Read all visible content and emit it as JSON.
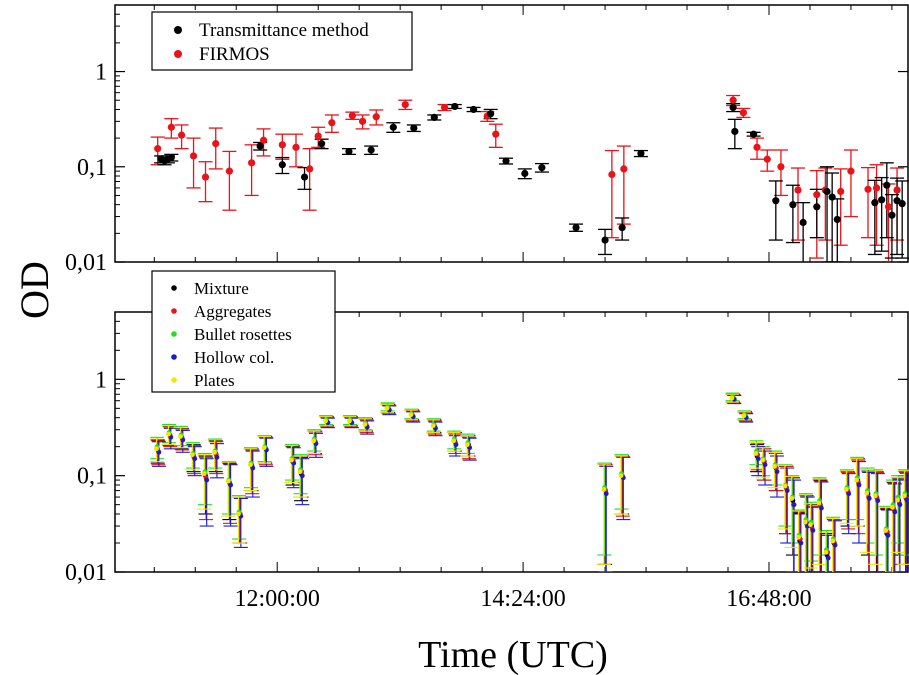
{
  "chart_data": [
    {
      "type": "scatter",
      "panel": "top",
      "yscale": "log",
      "ylim": [
        0.01,
        5
      ],
      "y_ticks": [
        "0,01",
        "0,1",
        "1"
      ],
      "x_ticks": [
        "12:00:00",
        "14:24:00",
        "16:48:00"
      ],
      "legend_position": "top-left",
      "series": [
        {
          "name": "Transmittance method",
          "color": "#000000",
          "points": [
            {
              "x": "10:52",
              "y": 0.12,
              "err": 0.01
            },
            {
              "x": "10:54",
              "y": 0.115,
              "err": 0.01
            },
            {
              "x": "10:56",
              "y": 0.12,
              "err": 0.01
            },
            {
              "x": "10:58",
              "y": 0.125,
              "err": 0.01
            },
            {
              "x": "11:50",
              "y": 0.165,
              "err": 0.015
            },
            {
              "x": "12:03",
              "y": 0.105,
              "err": 0.02
            },
            {
              "x": "12:16",
              "y": 0.078,
              "err": 0.02
            },
            {
              "x": "12:26",
              "y": 0.175,
              "err": 0.02
            },
            {
              "x": "12:42",
              "y": 0.145,
              "err": 0.01
            },
            {
              "x": "12:55",
              "y": 0.15,
              "err": 0.015
            },
            {
              "x": "13:08",
              "y": 0.26,
              "err": 0.03
            },
            {
              "x": "13:20",
              "y": 0.255,
              "err": 0.02
            },
            {
              "x": "13:32",
              "y": 0.33,
              "err": 0.02
            },
            {
              "x": "13:44",
              "y": 0.43,
              "err": 0.02
            },
            {
              "x": "13:55",
              "y": 0.4,
              "err": 0.02
            },
            {
              "x": "14:05",
              "y": 0.36,
              "err": 0.04
            },
            {
              "x": "14:14",
              "y": 0.115,
              "err": 0.008
            },
            {
              "x": "14:25",
              "y": 0.085,
              "err": 0.01
            },
            {
              "x": "14:35",
              "y": 0.098,
              "err": 0.01
            },
            {
              "x": "14:55",
              "y": 0.023,
              "err": 0.002
            },
            {
              "x": "15:12",
              "y": 0.017,
              "err": 0.005
            },
            {
              "x": "15:22",
              "y": 0.023,
              "err": 0.006
            },
            {
              "x": "15:33",
              "y": 0.138,
              "err": 0.01
            },
            {
              "x": "16:27",
              "y": 0.42,
              "err": 0.04
            },
            {
              "x": "16:28",
              "y": 0.235,
              "err": 0.08
            },
            {
              "x": "16:39",
              "y": 0.22,
              "err": 0.01
            },
            {
              "x": "16:52",
              "y": 0.044,
              "err": 0.027
            },
            {
              "x": "17:02",
              "y": 0.04,
              "err": 0.024
            },
            {
              "x": "17:08",
              "y": 0.026,
              "err": 0.016
            },
            {
              "x": "17:16",
              "y": 0.038,
              "err": 0.02
            },
            {
              "x": "17:22",
              "y": 0.055,
              "err": 0.045
            },
            {
              "x": "17:25",
              "y": 0.048,
              "err": 0.038
            },
            {
              "x": "17:28",
              "y": 0.028,
              "err": 0.018
            },
            {
              "x": "17:50",
              "y": 0.042,
              "err": 0.03
            },
            {
              "x": "17:54",
              "y": 0.045,
              "err": 0.032
            },
            {
              "x": "17:57",
              "y": 0.064,
              "err": 0.046
            },
            {
              "x": "18:00",
              "y": 0.031,
              "err": 0.02
            },
            {
              "x": "18:03",
              "y": 0.044,
              "err": 0.032
            },
            {
              "x": "18:06",
              "y": 0.041,
              "err": 0.03
            }
          ]
        },
        {
          "name": "FIRMOS",
          "color": "#e8141a",
          "points": [
            {
              "x": "10:50",
              "y": 0.155,
              "err": 0.05
            },
            {
              "x": "10:58",
              "y": 0.26,
              "err": 0.06
            },
            {
              "x": "11:04",
              "y": 0.215,
              "err": 0.06
            },
            {
              "x": "11:11",
              "y": 0.13,
              "err": 0.07
            },
            {
              "x": "11:18",
              "y": 0.078,
              "err": 0.035
            },
            {
              "x": "11:24",
              "y": 0.175,
              "err": 0.08
            },
            {
              "x": "11:32",
              "y": 0.09,
              "err": 0.055
            },
            {
              "x": "11:45",
              "y": 0.11,
              "err": 0.06
            },
            {
              "x": "11:52",
              "y": 0.19,
              "err": 0.06
            },
            {
              "x": "12:03",
              "y": 0.17,
              "err": 0.05
            },
            {
              "x": "12:11",
              "y": 0.16,
              "err": 0.06
            },
            {
              "x": "12:19",
              "y": 0.095,
              "err": 0.06
            },
            {
              "x": "12:24",
              "y": 0.21,
              "err": 0.05
            },
            {
              "x": "12:32",
              "y": 0.29,
              "err": 0.06
            },
            {
              "x": "12:44",
              "y": 0.345,
              "err": 0.03
            },
            {
              "x": "12:50",
              "y": 0.3,
              "err": 0.05
            },
            {
              "x": "12:58",
              "y": 0.335,
              "err": 0.06
            },
            {
              "x": "13:15",
              "y": 0.45,
              "err": 0.05
            },
            {
              "x": "13:38",
              "y": 0.42,
              "err": 0.03
            },
            {
              "x": "14:03",
              "y": 0.34,
              "err": 0.04
            },
            {
              "x": "14:08",
              "y": 0.22,
              "err": 0.06
            },
            {
              "x": "15:16",
              "y": 0.083,
              "err": 0.065
            },
            {
              "x": "15:23",
              "y": 0.095,
              "err": 0.07
            },
            {
              "x": "16:27",
              "y": 0.5,
              "err": 0.06
            },
            {
              "x": "16:33",
              "y": 0.37,
              "err": 0.04
            },
            {
              "x": "16:41",
              "y": 0.16,
              "err": 0.04
            },
            {
              "x": "16:47",
              "y": 0.12,
              "err": 0.03
            },
            {
              "x": "16:55",
              "y": 0.1,
              "err": 0.05
            },
            {
              "x": "17:05",
              "y": 0.057,
              "err": 0.04
            },
            {
              "x": "17:16",
              "y": 0.051,
              "err": 0.04
            },
            {
              "x": "17:21",
              "y": 0.057,
              "err": 0.04
            },
            {
              "x": "17:30",
              "y": 0.055,
              "err": 0.04
            },
            {
              "x": "17:36",
              "y": 0.09,
              "err": 0.06
            },
            {
              "x": "17:46",
              "y": 0.058,
              "err": 0.04
            },
            {
              "x": "17:51",
              "y": 0.06,
              "err": 0.045
            },
            {
              "x": "17:58",
              "y": 0.038,
              "err": 0.028
            },
            {
              "x": "18:03",
              "y": 0.057,
              "err": 0.04
            }
          ]
        }
      ]
    },
    {
      "type": "scatter",
      "panel": "bottom",
      "yscale": "log",
      "ylim": [
        0.01,
        5
      ],
      "y_ticks": [
        "0,01",
        "0,1",
        "1"
      ],
      "x_ticks": [
        "12:00:00",
        "14:24:00",
        "16:48:00"
      ],
      "xlabel": "Time (UTC)",
      "ylabel": "OD",
      "legend_position": "top-left",
      "series_names": [
        "Mixture",
        "Aggregates",
        "Bullet rosettes",
        "Hollow col.",
        "Plates"
      ],
      "series_colors": [
        "#000000",
        "#e8141a",
        "#22dd22",
        "#1a1ad6",
        "#f2e600"
      ],
      "x": [
        "10:50",
        "10:57",
        "11:04",
        "11:11",
        "11:18",
        "11:24",
        "11:32",
        "11:38",
        "11:45",
        "11:53",
        "12:09",
        "12:14",
        "12:22",
        "12:29",
        "12:43",
        "12:52",
        "13:05",
        "13:19",
        "13:32",
        "13:44",
        "13:52",
        "15:12",
        "15:22",
        "16:27",
        "16:34",
        "16:41",
        "16:45",
        "16:52",
        "16:58",
        "17:02",
        "17:06",
        "17:10",
        "17:13",
        "17:18",
        "17:22",
        "17:26",
        "17:34",
        "17:40",
        "17:46",
        "17:51",
        "17:57",
        "18:01",
        "18:04",
        "18:08"
      ],
      "series": [
        {
          "name": "Mixture",
          "values": [
            0.185,
            0.265,
            0.25,
            0.16,
            0.1,
            0.17,
            0.085,
            0.04,
            0.13,
            0.195,
            0.14,
            0.105,
            0.23,
            0.37,
            0.37,
            0.34,
            0.5,
            0.43,
            0.33,
            0.23,
            0.21,
            0.072,
            0.1,
            0.64,
            0.42,
            0.16,
            0.14,
            0.12,
            0.075,
            0.055,
            0.021,
            0.032,
            0.03,
            0.05,
            0.015,
            0.02,
            0.07,
            0.09,
            0.065,
            0.06,
            0.025,
            0.045,
            0.055,
            0.06
          ],
          "err": [
            0.05,
            0.06,
            0.06,
            0.05,
            0.06,
            0.06,
            0.05,
            0.02,
            0.06,
            0.06,
            0.06,
            0.05,
            0.06,
            0.04,
            0.04,
            0.05,
            0.05,
            0.05,
            0.05,
            0.05,
            0.05,
            0.06,
            0.06,
            0.06,
            0.04,
            0.05,
            0.05,
            0.05,
            0.05,
            0.04,
            0.02,
            0.03,
            0.02,
            0.04,
            0.01,
            0.015,
            0.04,
            0.06,
            0.05,
            0.05,
            0.02,
            0.04,
            0.04,
            0.05
          ]
        },
        {
          "name": "Aggregates",
          "values": [
            0.18,
            0.26,
            0.245,
            0.155,
            0.095,
            0.165,
            0.082,
            0.04,
            0.125,
            0.19,
            0.145,
            0.11,
            0.225,
            0.36,
            0.36,
            0.33,
            0.49,
            0.42,
            0.32,
            0.22,
            0.2,
            0.07,
            0.098,
            0.63,
            0.41,
            0.165,
            0.14,
            0.12,
            0.075,
            0.05,
            0.022,
            0.03,
            0.028,
            0.048,
            0.016,
            0.02,
            0.068,
            0.085,
            0.06,
            0.058,
            0.026,
            0.044,
            0.052,
            0.058
          ],
          "err": [
            0.05,
            0.06,
            0.06,
            0.05,
            0.06,
            0.06,
            0.05,
            0.02,
            0.06,
            0.06,
            0.06,
            0.05,
            0.06,
            0.04,
            0.04,
            0.05,
            0.05,
            0.05,
            0.05,
            0.05,
            0.05,
            0.06,
            0.06,
            0.06,
            0.04,
            0.05,
            0.05,
            0.05,
            0.05,
            0.04,
            0.02,
            0.03,
            0.02,
            0.04,
            0.01,
            0.015,
            0.04,
            0.06,
            0.05,
            0.05,
            0.02,
            0.04,
            0.04,
            0.05
          ]
        },
        {
          "name": "Bullet rosettes",
          "values": [
            0.2,
            0.28,
            0.265,
            0.17,
            0.11,
            0.18,
            0.09,
            0.042,
            0.135,
            0.2,
            0.15,
            0.115,
            0.24,
            0.38,
            0.38,
            0.35,
            0.52,
            0.44,
            0.34,
            0.24,
            0.22,
            0.075,
            0.105,
            0.66,
            0.43,
            0.18,
            0.15,
            0.13,
            0.08,
            0.06,
            0.024,
            0.035,
            0.033,
            0.055,
            0.017,
            0.022,
            0.075,
            0.095,
            0.07,
            0.065,
            0.028,
            0.05,
            0.06,
            0.065
          ],
          "err": [
            0.05,
            0.06,
            0.06,
            0.05,
            0.06,
            0.06,
            0.05,
            0.02,
            0.06,
            0.06,
            0.06,
            0.05,
            0.06,
            0.04,
            0.04,
            0.05,
            0.05,
            0.05,
            0.05,
            0.05,
            0.05,
            0.06,
            0.06,
            0.06,
            0.04,
            0.05,
            0.05,
            0.05,
            0.05,
            0.04,
            0.02,
            0.03,
            0.02,
            0.04,
            0.01,
            0.015,
            0.04,
            0.06,
            0.05,
            0.05,
            0.02,
            0.04,
            0.04,
            0.05
          ]
        },
        {
          "name": "Hollow col.",
          "values": [
            0.175,
            0.25,
            0.235,
            0.15,
            0.09,
            0.155,
            0.08,
            0.038,
            0.12,
            0.185,
            0.135,
            0.1,
            0.215,
            0.355,
            0.355,
            0.32,
            0.48,
            0.41,
            0.31,
            0.21,
            0.195,
            0.065,
            0.095,
            0.62,
            0.4,
            0.15,
            0.13,
            0.11,
            0.07,
            0.05,
            0.02,
            0.03,
            0.027,
            0.046,
            0.014,
            0.019,
            0.065,
            0.08,
            0.058,
            0.055,
            0.024,
            0.042,
            0.05,
            0.056
          ],
          "err": [
            0.05,
            0.06,
            0.06,
            0.05,
            0.06,
            0.06,
            0.05,
            0.02,
            0.06,
            0.06,
            0.06,
            0.05,
            0.06,
            0.04,
            0.04,
            0.05,
            0.05,
            0.05,
            0.05,
            0.05,
            0.05,
            0.06,
            0.06,
            0.06,
            0.04,
            0.05,
            0.05,
            0.05,
            0.05,
            0.04,
            0.02,
            0.03,
            0.02,
            0.04,
            0.01,
            0.015,
            0.04,
            0.06,
            0.05,
            0.05,
            0.02,
            0.04,
            0.04,
            0.05
          ]
        },
        {
          "name": "Plates",
          "values": [
            0.19,
            0.27,
            0.255,
            0.165,
            0.105,
            0.175,
            0.088,
            0.04,
            0.13,
            0.195,
            0.145,
            0.11,
            0.23,
            0.37,
            0.37,
            0.34,
            0.5,
            0.43,
            0.33,
            0.23,
            0.21,
            0.072,
            0.1,
            0.64,
            0.42,
            0.17,
            0.145,
            0.125,
            0.078,
            0.058,
            0.023,
            0.033,
            0.031,
            0.052,
            0.016,
            0.021,
            0.072,
            0.09,
            0.066,
            0.062,
            0.027,
            0.047,
            0.056,
            0.062
          ],
          "err": [
            0.05,
            0.06,
            0.06,
            0.05,
            0.06,
            0.06,
            0.05,
            0.02,
            0.06,
            0.06,
            0.06,
            0.05,
            0.06,
            0.04,
            0.04,
            0.05,
            0.05,
            0.05,
            0.05,
            0.05,
            0.05,
            0.06,
            0.06,
            0.06,
            0.04,
            0.05,
            0.05,
            0.05,
            0.05,
            0.04,
            0.02,
            0.03,
            0.02,
            0.04,
            0.01,
            0.015,
            0.04,
            0.06,
            0.05,
            0.05,
            0.02,
            0.04,
            0.04,
            0.05
          ]
        }
      ]
    }
  ]
}
